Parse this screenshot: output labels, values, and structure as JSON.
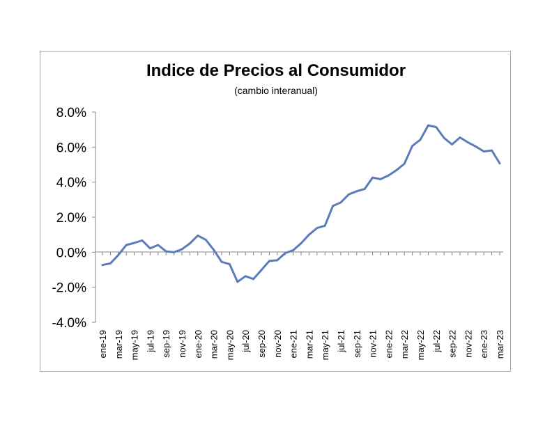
{
  "chart_data": {
    "type": "line",
    "title": "Indice de Precios al Consumidor",
    "subtitle": "(cambio interanual)",
    "xlabel": "",
    "ylabel": "",
    "ylim": [
      -4.0,
      8.0
    ],
    "yticks": [
      "8.0%",
      "6.0%",
      "4.0%",
      "2.0%",
      "0.0%",
      "-2.0%",
      "-4.0%"
    ],
    "ytick_values": [
      8,
      6,
      4,
      2,
      0,
      -2,
      -4
    ],
    "grid": false,
    "legend": "none",
    "line_color": "#5b7bba",
    "x": [
      "ene-19",
      "feb-19",
      "mar-19",
      "abr-19",
      "may-19",
      "jun-19",
      "jul-19",
      "ago-19",
      "sep-19",
      "oct-19",
      "nov-19",
      "dic-19",
      "ene-20",
      "feb-20",
      "mar-20",
      "abr-20",
      "may-20",
      "jun-20",
      "jul-20",
      "ago-20",
      "sep-20",
      "oct-20",
      "nov-20",
      "dic-20",
      "ene-21",
      "feb-21",
      "mar-21",
      "abr-21",
      "may-21",
      "jun-21",
      "jul-21",
      "ago-21",
      "sep-21",
      "oct-21",
      "nov-21",
      "dic-21",
      "ene-22",
      "feb-22",
      "mar-22",
      "abr-22",
      "may-22",
      "jun-22",
      "jul-22",
      "ago-22",
      "sep-22",
      "oct-22",
      "nov-22",
      "dic-22",
      "ene-23",
      "feb-23",
      "mar-23"
    ],
    "xtick_labels": [
      "ene-19",
      "mar-19",
      "may-19",
      "jul-19",
      "sep-19",
      "nov-19",
      "ene-20",
      "mar-20",
      "may-20",
      "jul-20",
      "sep-20",
      "nov-20",
      "ene-21",
      "mar-21",
      "may-21",
      "jul-21",
      "sep-21",
      "nov-21",
      "ene-22",
      "mar-22",
      "may-22",
      "jul-22",
      "sep-22",
      "nov-22",
      "ene-23",
      "mar-23"
    ],
    "series": [
      {
        "values": [
          -0.73,
          -0.64,
          -0.16,
          0.41,
          0.53,
          0.67,
          0.22,
          0.41,
          0.05,
          0.0,
          0.17,
          0.5,
          0.95,
          0.71,
          0.14,
          -0.55,
          -0.68,
          -1.69,
          -1.37,
          -1.53,
          -1.02,
          -0.5,
          -0.46,
          -0.05,
          0.11,
          0.51,
          1.0,
          1.38,
          1.51,
          2.64,
          2.84,
          3.3,
          3.48,
          3.61,
          4.26,
          4.17,
          4.38,
          4.68,
          5.05,
          6.07,
          6.42,
          7.24,
          7.14,
          6.52,
          6.15,
          6.55,
          6.27,
          6.03,
          5.75,
          5.81,
          5.07
        ]
      }
    ]
  }
}
